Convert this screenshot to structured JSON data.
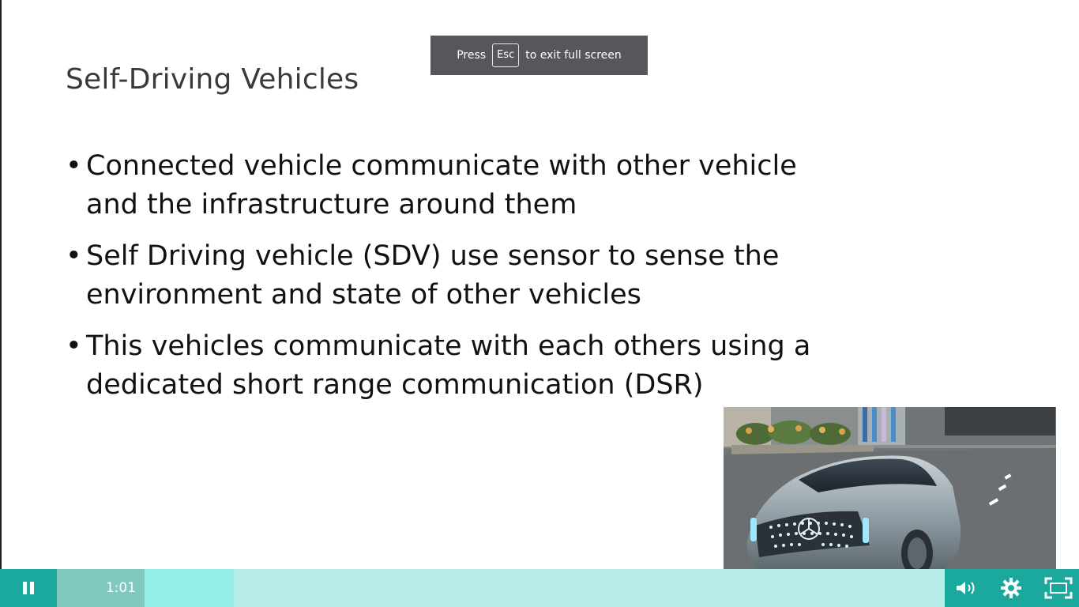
{
  "slide": {
    "title": "Self-Driving Vehicles",
    "bullets": [
      {
        "text": "Connected vehicle communicate with other vehicle and the infrastructure around them"
      },
      {
        "text": "Self Driving vehicle (SDV) use sensor to sense the environment and state of other vehicles"
      },
      {
        "text": "This vehicles communicate with each others using a dedicated short range communication (DSR)"
      }
    ],
    "bullet_glyph": "•"
  },
  "fullscreen_notice": {
    "prefix": "Press",
    "key": "Esc",
    "suffix": "to exit full screen"
  },
  "player": {
    "current_time": "1:01",
    "icons": {
      "play_pause": "pause-icon",
      "volume": "volume-icon",
      "settings": "gear-icon",
      "fullscreen": "exit-fullscreen-icon"
    },
    "colors": {
      "control_bar": "#b9ede9",
      "control_button": "#1aa99c",
      "progress_played": "#80c8c0",
      "progress_buffered": "#96efe7"
    }
  },
  "video_overlay": {
    "subject": "silver self-driving concept car on a city street"
  }
}
